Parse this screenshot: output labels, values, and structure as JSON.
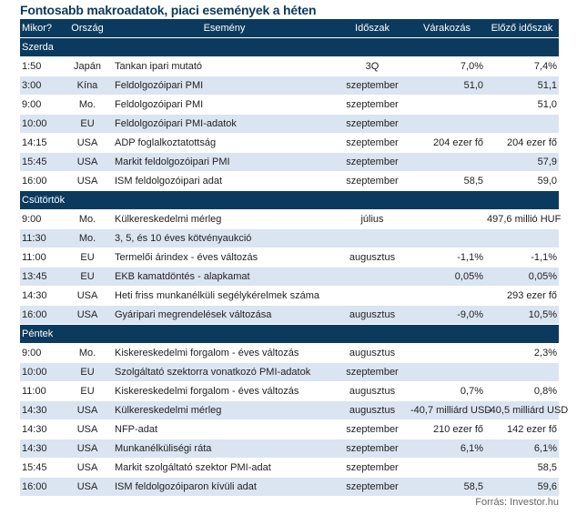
{
  "title": "Fontosabb makroadatok, piaci események a héten",
  "headers": [
    "Mikor?",
    "Ország",
    "Esemény",
    "Időszak",
    "Várakozás",
    "Előző időszak"
  ],
  "sections": [
    {
      "name": "Szerda",
      "rows": [
        {
          "time": "1:50",
          "country": "Japán",
          "event": "Tankan ipari mutató",
          "period": "3Q",
          "expected": "7,0%",
          "previous": "7,4%"
        },
        {
          "time": "3:00",
          "country": "Kína",
          "event": "Feldolgozóipari PMI",
          "period": "szeptember",
          "expected": "51,0",
          "previous": "51,1"
        },
        {
          "time": "9:00",
          "country": "Mo.",
          "event": "Feldolgozóipari PMI",
          "period": "szeptember",
          "expected": "",
          "previous": "51,0"
        },
        {
          "time": "10:00",
          "country": "EU",
          "event": "Feldolgozóipari PMI-adatok",
          "period": "szeptember",
          "expected": "",
          "previous": ""
        },
        {
          "time": "14:15",
          "country": "USA",
          "event": "ADP foglalkoztatottság",
          "period": "szeptember",
          "expected": "204 ezer fő",
          "previous": "204 ezer fő"
        },
        {
          "time": "15:45",
          "country": "USA",
          "event": "Markit feldolgozóipari PMI",
          "period": "szeptember",
          "expected": "",
          "previous": "57,9"
        },
        {
          "time": "16:00",
          "country": "USA",
          "event": "ISM feldolgozóipari adat",
          "period": "szeptember",
          "expected": "58,5",
          "previous": "59,0"
        }
      ]
    },
    {
      "name": "Csütörtök",
      "rows": [
        {
          "time": "9:00",
          "country": "Mo.",
          "event": "Külkereskedelmi mérleg",
          "period": "július",
          "expected": "",
          "previous": "497,6 millió HUF"
        },
        {
          "time": "11:30",
          "country": "Mo.",
          "event": "3, 5, és 10 éves kötvényaukció",
          "period": "",
          "expected": "",
          "previous": ""
        },
        {
          "time": "11:00",
          "country": "EU",
          "event": "Termelői árindex - éves változás",
          "period": "augusztus",
          "expected": "-1,1%",
          "previous": "-1,1%"
        },
        {
          "time": "13:45",
          "country": "EU",
          "event": "EKB kamatdöntés - alapkamat",
          "period": "",
          "expected": "0,05%",
          "previous": "0,05%"
        },
        {
          "time": "14:30",
          "country": "USA",
          "event": "Heti friss munkanélküli segélykérelmek száma",
          "period": "",
          "expected": "",
          "previous": "293 ezer fő"
        },
        {
          "time": "16:00",
          "country": "USA",
          "event": "Gyáripari megrendelések változása",
          "period": "augusztus",
          "expected": "-9,0%",
          "previous": "10,5%"
        }
      ]
    },
    {
      "name": "Péntek",
      "rows": [
        {
          "time": "9:00",
          "country": "Mo.",
          "event": "Kiskereskedelmi forgalom - éves változás",
          "period": "augusztus",
          "expected": "",
          "previous": "2,3%"
        },
        {
          "time": "10:00",
          "country": "EU",
          "event": "Szolgáltató szektorra vonatkozó PMI-adatok",
          "period": "szeptember",
          "expected": "",
          "previous": ""
        },
        {
          "time": "11:00",
          "country": "EU",
          "event": "Kiskereskedelmi forgalom - éves változás",
          "period": "augusztus",
          "expected": "0,7%",
          "previous": "0,8%"
        },
        {
          "time": "14:30",
          "country": "USA",
          "event": "Külkereskedelmi mérleg",
          "period": "augusztus",
          "expected": "-40,7 milliárd USD",
          "previous": "-40,5 milliárd USD"
        },
        {
          "time": "14:30",
          "country": "USA",
          "event": "NFP-adat",
          "period": "szeptember",
          "expected": "210 ezer fő",
          "previous": "142 ezer fő"
        },
        {
          "time": "14:30",
          "country": "USA",
          "event": "Munkanélküliségi ráta",
          "period": "szeptember",
          "expected": "6,1%",
          "previous": "6,1%"
        },
        {
          "time": "15:45",
          "country": "USA",
          "event": "Markit szolgáltató szektor PMI-adat",
          "period": "szeptember",
          "expected": "",
          "previous": "58,5"
        },
        {
          "time": "16:00",
          "country": "USA",
          "event": "ISM feldolgozóiparon kívüli adat",
          "period": "szeptember",
          "expected": "58,5",
          "previous": "59,6"
        }
      ]
    }
  ],
  "source": "Forrás: Investor.hu"
}
